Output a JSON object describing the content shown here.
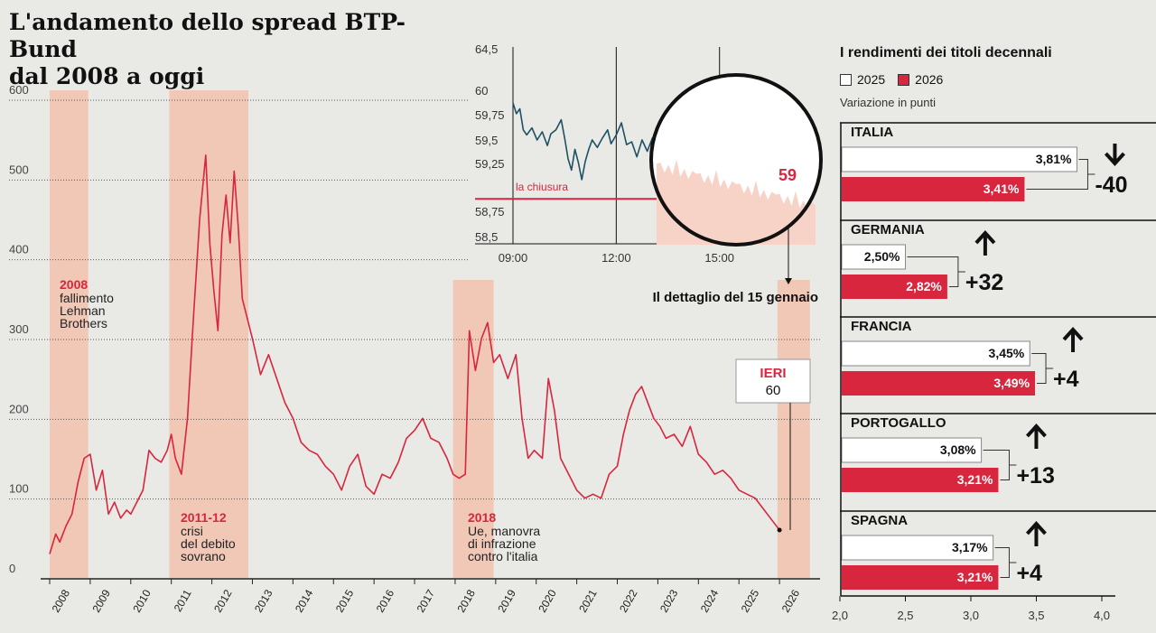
{
  "title": {
    "line1": "L'andamento dello spread BTP-Bund",
    "line2": "dal 2008 a oggi"
  },
  "colors": {
    "line": "#d7263d",
    "band": "#f1c7b6",
    "inset_line": "#1f5064",
    "bar2025": "#ffffff",
    "bar2026": "#d7263d",
    "background": "#e9e9e5"
  },
  "chart_data": [
    {
      "type": "line",
      "y_ticks": [
        "600",
        "500",
        "400",
        "300",
        "200",
        "100",
        "0"
      ],
      "ylim": [
        0,
        600
      ],
      "x_tick_labels": [
        "2008",
        "2009",
        "2010",
        "2011",
        "2012",
        "2013",
        "2014",
        "2015",
        "2016",
        "2017",
        "2018",
        "2019",
        "2020",
        "2021",
        "2022",
        "2023",
        "2024",
        "2025",
        "2026"
      ],
      "series": [
        {
          "points": [
            [
              2008.0,
              30
            ],
            [
              2008.15,
              55
            ],
            [
              2008.25,
              45
            ],
            [
              2008.4,
              65
            ],
            [
              2008.55,
              80
            ],
            [
              2008.7,
              120
            ],
            [
              2008.85,
              150
            ],
            [
              2009.0,
              155
            ],
            [
              2009.15,
              110
            ],
            [
              2009.3,
              135
            ],
            [
              2009.45,
              80
            ],
            [
              2009.6,
              95
            ],
            [
              2009.75,
              75
            ],
            [
              2009.9,
              85
            ],
            [
              2010.0,
              80
            ],
            [
              2010.15,
              95
            ],
            [
              2010.3,
              110
            ],
            [
              2010.45,
              160
            ],
            [
              2010.6,
              150
            ],
            [
              2010.75,
              145
            ],
            [
              2010.9,
              160
            ],
            [
              2011.0,
              180
            ],
            [
              2011.1,
              150
            ],
            [
              2011.25,
              130
            ],
            [
              2011.4,
              200
            ],
            [
              2011.55,
              330
            ],
            [
              2011.7,
              450
            ],
            [
              2011.85,
              530
            ],
            [
              2011.95,
              420
            ],
            [
              2012.05,
              360
            ],
            [
              2012.15,
              310
            ],
            [
              2012.25,
              430
            ],
            [
              2012.35,
              480
            ],
            [
              2012.45,
              420
            ],
            [
              2012.55,
              510
            ],
            [
              2012.65,
              440
            ],
            [
              2012.75,
              350
            ],
            [
              2012.9,
              320
            ],
            [
              2013.0,
              300
            ],
            [
              2013.2,
              255
            ],
            [
              2013.4,
              280
            ],
            [
              2013.6,
              250
            ],
            [
              2013.8,
              220
            ],
            [
              2014.0,
              200
            ],
            [
              2014.2,
              170
            ],
            [
              2014.4,
              160
            ],
            [
              2014.6,
              155
            ],
            [
              2014.8,
              140
            ],
            [
              2015.0,
              130
            ],
            [
              2015.2,
              110
            ],
            [
              2015.4,
              140
            ],
            [
              2015.6,
              155
            ],
            [
              2015.8,
              115
            ],
            [
              2016.0,
              105
            ],
            [
              2016.2,
              130
            ],
            [
              2016.4,
              125
            ],
            [
              2016.6,
              145
            ],
            [
              2016.8,
              175
            ],
            [
              2017.0,
              185
            ],
            [
              2017.2,
              200
            ],
            [
              2017.4,
              175
            ],
            [
              2017.6,
              170
            ],
            [
              2017.8,
              150
            ],
            [
              2017.95,
              130
            ],
            [
              2018.1,
              125
            ],
            [
              2018.25,
              130
            ],
            [
              2018.35,
              310
            ],
            [
              2018.5,
              260
            ],
            [
              2018.65,
              300
            ],
            [
              2018.8,
              320
            ],
            [
              2018.95,
              270
            ],
            [
              2019.1,
              280
            ],
            [
              2019.3,
              250
            ],
            [
              2019.5,
              280
            ],
            [
              2019.65,
              200
            ],
            [
              2019.8,
              150
            ],
            [
              2019.95,
              160
            ],
            [
              2020.15,
              150
            ],
            [
              2020.3,
              250
            ],
            [
              2020.45,
              210
            ],
            [
              2020.6,
              150
            ],
            [
              2020.8,
              130
            ],
            [
              2021.0,
              110
            ],
            [
              2021.2,
              100
            ],
            [
              2021.4,
              105
            ],
            [
              2021.6,
              100
            ],
            [
              2021.8,
              130
            ],
            [
              2022.0,
              140
            ],
            [
              2022.15,
              180
            ],
            [
              2022.3,
              210
            ],
            [
              2022.45,
              230
            ],
            [
              2022.6,
              240
            ],
            [
              2022.75,
              220
            ],
            [
              2022.9,
              200
            ],
            [
              2023.05,
              190
            ],
            [
              2023.2,
              175
            ],
            [
              2023.4,
              180
            ],
            [
              2023.6,
              165
            ],
            [
              2023.8,
              190
            ],
            [
              2024.0,
              155
            ],
            [
              2024.2,
              145
            ],
            [
              2024.4,
              130
            ],
            [
              2024.6,
              135
            ],
            [
              2024.8,
              125
            ],
            [
              2025.0,
              110
            ],
            [
              2025.2,
              105
            ],
            [
              2025.4,
              100
            ],
            [
              2025.55,
              90
            ],
            [
              2025.7,
              80
            ],
            [
              2025.85,
              70
            ],
            [
              2026.0,
              60
            ]
          ]
        }
      ],
      "shaded_periods": [
        {
          "start": 2008.0,
          "end": 2008.95,
          "year": "2008",
          "lines": [
            "fallimento",
            "Lehman",
            "Brothers"
          ]
        },
        {
          "start": 2010.95,
          "end": 2012.9,
          "year": "2011-12",
          "lines": [
            "crisi",
            "del debito",
            "sovrano"
          ]
        },
        {
          "start": 2017.95,
          "end": 2018.95,
          "year": "2018",
          "lines": [
            "Ue, manovra",
            "di infrazione",
            "contro l'italia"
          ]
        },
        {
          "start": 2025.95,
          "end": 2026.75,
          "year": "",
          "lines": []
        }
      ],
      "annotations": {
        "ieri_label": "IERI",
        "ieri_value": "60",
        "detail_label": "Il dettaglio del 15 gennaio"
      }
    },
    {
      "type": "line",
      "y_ticks": [
        "64,5",
        "60",
        "59,75",
        "59,5",
        "59,25",
        "58,75",
        "58,5"
      ],
      "x_tick_labels": [
        "09:00",
        "12:00",
        "15:00"
      ],
      "closing_label": "la chiusura",
      "closing_value": 58.88,
      "zoom_value": "59",
      "series": [
        {
          "points": [
            [
              9.0,
              59.87
            ],
            [
              9.1,
              59.76
            ],
            [
              9.2,
              59.81
            ],
            [
              9.3,
              59.6
            ],
            [
              9.4,
              59.55
            ],
            [
              9.55,
              59.62
            ],
            [
              9.7,
              59.5
            ],
            [
              9.85,
              59.58
            ],
            [
              10.0,
              59.44
            ],
            [
              10.1,
              59.56
            ],
            [
              10.25,
              59.6
            ],
            [
              10.4,
              59.7
            ],
            [
              10.5,
              59.52
            ],
            [
              10.6,
              59.3
            ],
            [
              10.7,
              59.18
            ],
            [
              10.8,
              59.4
            ],
            [
              10.9,
              59.26
            ],
            [
              11.0,
              59.08
            ],
            [
              11.1,
              59.27
            ],
            [
              11.2,
              59.4
            ],
            [
              11.3,
              59.5
            ],
            [
              11.45,
              59.42
            ],
            [
              11.6,
              59.52
            ],
            [
              11.75,
              59.6
            ],
            [
              11.85,
              59.46
            ],
            [
              12.0,
              59.55
            ],
            [
              12.15,
              59.67
            ],
            [
              12.3,
              59.45
            ],
            [
              12.45,
              59.48
            ],
            [
              12.6,
              59.32
            ],
            [
              12.75,
              59.5
            ],
            [
              12.9,
              59.38
            ],
            [
              13.05,
              59.52
            ],
            [
              13.2,
              59.45
            ]
          ]
        }
      ]
    },
    {
      "type": "bar",
      "title": "I rendimenti dei titoli decennali",
      "legend": [
        "2025",
        "2026"
      ],
      "note": "Variazione in punti",
      "xlim": [
        2.0,
        4.0
      ],
      "x_ticks": [
        "2,0",
        "2,5",
        "3,0",
        "3,5",
        "4,0"
      ],
      "categories": [
        "ITALIA",
        "GERMANIA",
        "FRANCIA",
        "PORTOGALLO",
        "SPAGNA"
      ],
      "series": [
        {
          "name": "2025",
          "values": [
            3.81,
            2.5,
            3.45,
            3.08,
            3.17
          ],
          "labels": [
            "3,81%",
            "2,50%",
            "3,45%",
            "3,08%",
            "3,17%"
          ]
        },
        {
          "name": "2026",
          "values": [
            3.41,
            2.82,
            3.49,
            3.21,
            3.21
          ],
          "labels": [
            "3,41%",
            "2,82%",
            "3,49%",
            "3,21%",
            "3,21%"
          ]
        }
      ],
      "changes": [
        {
          "text": "-40",
          "direction": "down"
        },
        {
          "text": "+32",
          "direction": "up"
        },
        {
          "text": "+4",
          "direction": "up"
        },
        {
          "text": "+13",
          "direction": "up"
        },
        {
          "text": "+4",
          "direction": "up"
        }
      ]
    }
  ]
}
